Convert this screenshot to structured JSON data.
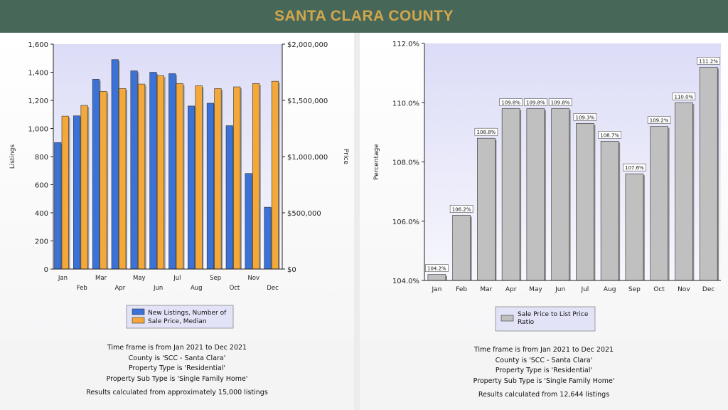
{
  "header": {
    "title": "SANTA CLARA COUNTY"
  },
  "colors": {
    "header_bg": "#476859",
    "title": "#d4a64c",
    "listings_bar": "#3a72d8",
    "price_bar": "#f5a83a",
    "ratio_bar": "#c0c0c0"
  },
  "chart_data": [
    {
      "type": "bar",
      "categories": [
        "Jan",
        "Feb",
        "Mar",
        "Apr",
        "May",
        "Jun",
        "Jul",
        "Aug",
        "Sep",
        "Oct",
        "Nov",
        "Dec"
      ],
      "series": [
        {
          "name": "New Listings, Number of",
          "axis": "left",
          "values": [
            900,
            1090,
            1350,
            1490,
            1410,
            1400,
            1390,
            1160,
            1180,
            1020,
            680,
            440
          ]
        },
        {
          "name": "Sale Price, Median",
          "axis": "right",
          "values": [
            1360000,
            1455000,
            1580000,
            1605000,
            1645000,
            1720000,
            1650000,
            1630000,
            1605000,
            1620000,
            1650000,
            1670000
          ]
        }
      ],
      "ylabel": "Listings",
      "y2label": "Price",
      "ylim": [
        0,
        1600
      ],
      "y2lim": [
        0,
        2000000
      ],
      "yticks": [
        "0",
        "200",
        "400",
        "600",
        "800",
        "1,000",
        "1,200",
        "1,400",
        "1,600"
      ],
      "y2ticks": [
        "$0",
        "$500,000",
        "$1,000,000",
        "$1,500,000",
        "$2,000,000"
      ],
      "legend": [
        "New Listings, Number of",
        "Sale Price, Median"
      ],
      "legend_position": "bottom",
      "grid": false
    },
    {
      "type": "bar",
      "categories": [
        "Jan",
        "Feb",
        "Mar",
        "Apr",
        "May",
        "Jun",
        "Jul",
        "Aug",
        "Sep",
        "Oct",
        "Nov",
        "Dec"
      ],
      "series": [
        {
          "name": "Sale Price to List Price Ratio",
          "values": [
            104.2,
            106.2,
            108.8,
            109.8,
            109.8,
            109.8,
            109.3,
            108.7,
            107.6,
            109.2,
            110.0,
            111.2
          ]
        }
      ],
      "value_labels": [
        "104.2%",
        "106.2%",
        "108.8%",
        "109.8%",
        "109.8%",
        "109.8%",
        "109.3%",
        "108.7%",
        "107.6%",
        "109.2%",
        "110.0%",
        "111.2%"
      ],
      "ylabel": "Percentage",
      "ylim": [
        104.0,
        112.0
      ],
      "yticks": [
        "104.0%",
        "106.0%",
        "108.0%",
        "110.0%",
        "112.0%"
      ],
      "legend": [
        "Sale Price to List Price Ratio"
      ],
      "legend_position": "bottom",
      "grid": false
    }
  ],
  "footer_left": [
    "Time frame is from Jan 2021 to Dec 2021",
    "County is 'SCC - Santa Clara'",
    "Property Type is 'Residential'",
    "Property Sub Type is 'Single Family Home'",
    "Results calculated from approximately 15,000 listings"
  ],
  "footer_right": [
    "Time frame is from Jan 2021 to Dec 2021",
    "County is 'SCC - Santa Clara'",
    "Property Type is 'Residential'",
    "Property Sub Type is 'Single Family Home'",
    "Results calculated from 12,644 listings"
  ]
}
